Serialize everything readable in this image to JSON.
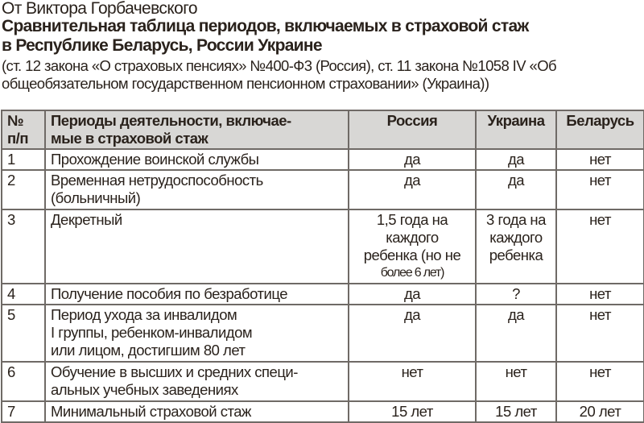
{
  "author": "От Виктора Горбачевского",
  "title_line1": "Сравнительная таблица периодов, включаемых в страховой стаж",
  "title_line2": "в Республике Беларусь, России Украине",
  "subtitle_line1": "(ст. 12 закона «О страховых пенсиях» №400-Ф3 (Россия), ст. 11 закона №1058 IV «Об",
  "subtitle_line2": "общеобязательном государственном пенсионном страховании» (Украина))",
  "table": {
    "headers": {
      "num_1": "№",
      "num_2": "п/п",
      "period_1": "Периоды деятельности, включае-",
      "period_2": "мые в страховой стаж",
      "russia": "Россия",
      "ukraine": "Украина",
      "belarus": "Беларусь"
    },
    "rows": [
      {
        "num": "1",
        "period": [
          "Прохождение воинской службы"
        ],
        "russia": [
          "да"
        ],
        "ukraine": [
          "да"
        ],
        "belarus": "нет"
      },
      {
        "num": "2",
        "period": [
          "Временная нетрудоспособность",
          "(больничный)"
        ],
        "russia": [
          "да"
        ],
        "ukraine": [
          "да"
        ],
        "belarus": "нет"
      },
      {
        "num": "3",
        "period": [
          "Декретный"
        ],
        "russia": [
          "1,5 года на",
          "каждого",
          "ребенка (но не",
          "более 6 лет)"
        ],
        "ukraine": [
          "3 года на",
          "каждого",
          "ребенка"
        ],
        "belarus": "нет"
      },
      {
        "num": "4",
        "period": [
          "Получение пособия по безработице"
        ],
        "russia": [
          "да"
        ],
        "ukraine": [
          "?"
        ],
        "belarus": "нет"
      },
      {
        "num": "5",
        "period": [
          "Период ухода за инвалидом",
          "I группы, ребенком-инвалидом",
          "или лицом, достигшим 80 лет"
        ],
        "russia": [
          "да"
        ],
        "ukraine": [
          "да"
        ],
        "belarus": "нет"
      },
      {
        "num": "6",
        "period": [
          "Обучение в высших и средних специ-",
          "альных учебных заведениях"
        ],
        "russia": [
          "нет"
        ],
        "ukraine": [
          "нет"
        ],
        "belarus": "нет"
      },
      {
        "num": "7",
        "period": [
          "Минимальный страховой стаж"
        ],
        "russia": [
          "15 лет"
        ],
        "ukraine": [
          "15 лет"
        ],
        "belarus": "20 лет"
      }
    ]
  }
}
